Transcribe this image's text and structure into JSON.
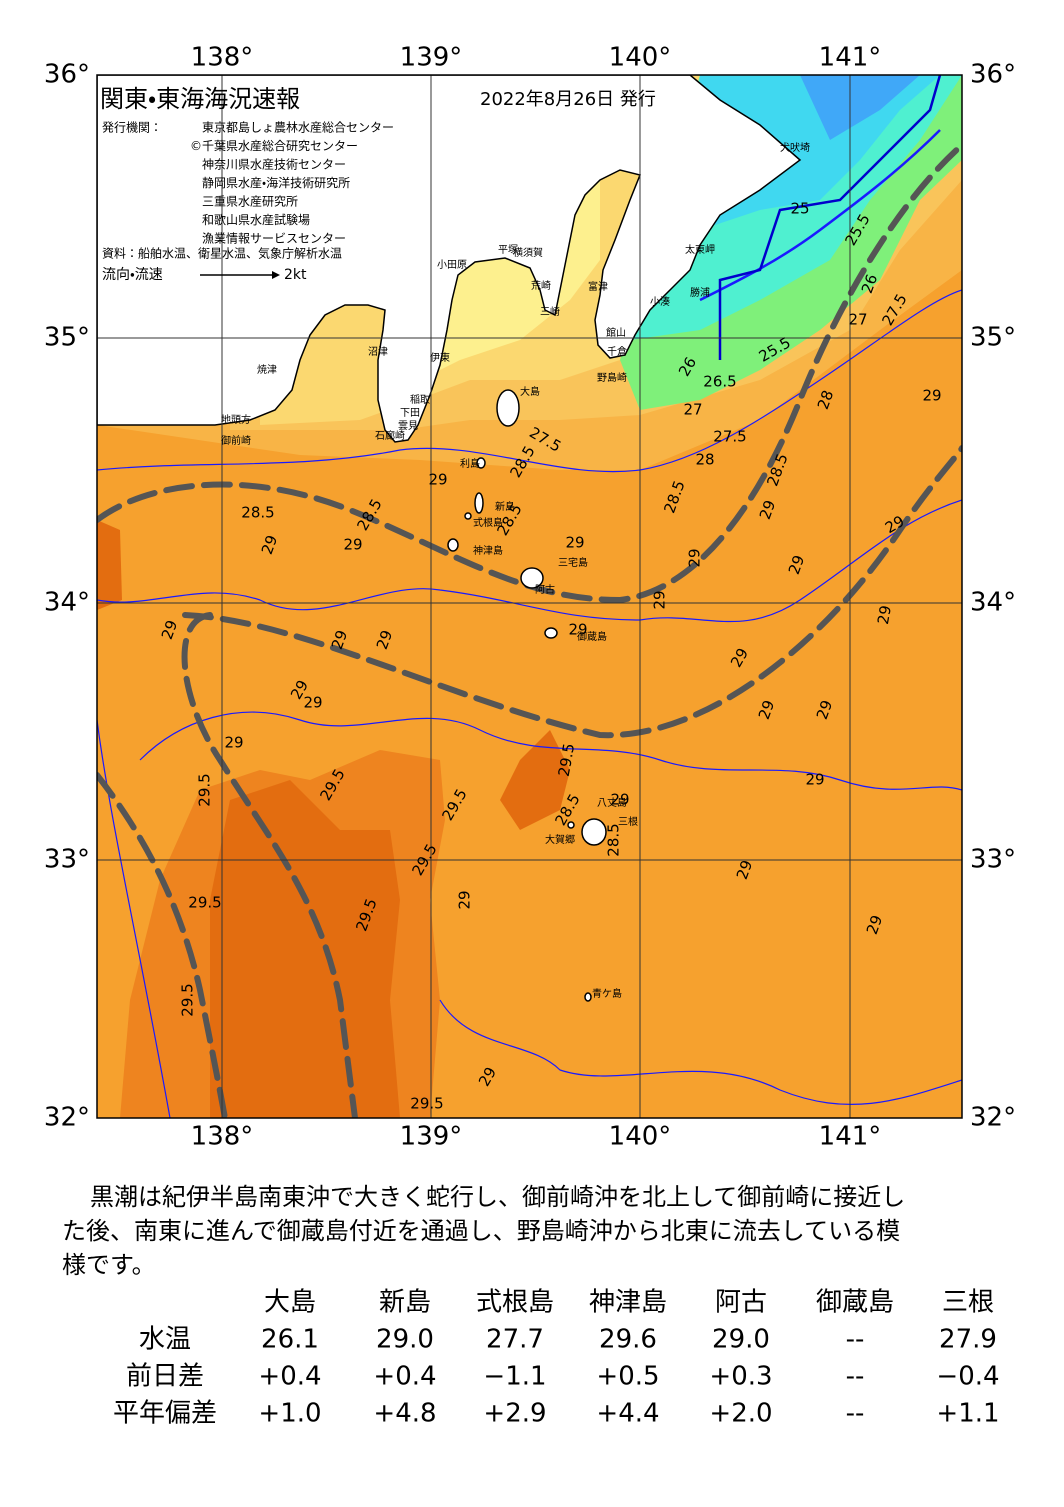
{
  "header": {
    "title": "関東・東海海況速報",
    "date": "2022年8月26日 発行"
  },
  "agencies": {
    "label": "発行機関：",
    "list": [
      "東京都島しょ農林水産総合センター",
      "©千葉県水産総合研究センター",
      "神奈川県水産技術センター",
      "静岡県水産・海洋技術研究所",
      "三重県水産研究所",
      "和歌山県水産試験場",
      "漁業情報サービスセンター"
    ]
  },
  "source": "資料：船舶水温、衛星水温、気象庁解析水温",
  "legend": {
    "label": "流向・流速",
    "scale": "2kt"
  },
  "map": {
    "lon_ticks": [
      "138°",
      "139°",
      "140°",
      "141°"
    ],
    "lat_ticks": [
      "36°",
      "35°",
      "34°",
      "33°",
      "32°"
    ],
    "place_names": [
      "犬吠埼",
      "太東岬",
      "勝浦",
      "小湊",
      "館山",
      "千倉",
      "野島崎",
      "富津",
      "横須賀",
      "平塚",
      "小田原",
      "荒崎",
      "三崎",
      "沼津",
      "伊東",
      "焼津",
      "地頭方",
      "御前崎",
      "稲取",
      "下田",
      "雲見",
      "石廊崎",
      "大島",
      "利島",
      "新島",
      "式根島",
      "神津島",
      "三宅島",
      "阿古",
      "御蔵島",
      "八丈島",
      "三根",
      "大賀郷",
      "青ケ島"
    ],
    "contour_labels": [
      "28.5",
      "29",
      "28.5",
      "29",
      "29",
      "28.5",
      "27.5",
      "28.5",
      "29",
      "29",
      "29",
      "29",
      "29",
      "29",
      "29",
      "29.5",
      "29.5",
      "29.5",
      "29.5",
      "29.5",
      "29.5",
      "29.5",
      "29.5",
      "29.5",
      "28.5",
      "28.5",
      "29",
      "29",
      "29",
      "29",
      "29",
      "29",
      "28.5",
      "28",
      "27.5",
      "27",
      "26.5",
      "26",
      "25.5",
      "25",
      "25.5",
      "26",
      "27",
      "27.5",
      "28",
      "29",
      "28.5",
      "29",
      "29",
      "29",
      "29",
      "29",
      "29",
      "29",
      "29",
      "29",
      "29"
    ]
  },
  "note": {
    "lines": [
      "黒潮は紀伊半島南東沖で大きく蛇行し、御前崎沖を北上して御前崎に接近し",
      "た後、南東に進んで御蔵島付近を通過し、野島崎沖から北東に流去している模",
      "様です。"
    ]
  },
  "table": {
    "columns": [
      "大島",
      "新島",
      "式根島",
      "神津島",
      "阿古",
      "御蔵島",
      "三根"
    ],
    "rows": [
      [
        "水温",
        "26.1",
        "29.0",
        "27.7",
        "29.6",
        "29.0",
        "--",
        "27.9"
      ],
      [
        "前日差",
        "+0.4",
        "+0.4",
        "−1.1",
        "+0.5",
        "+0.3",
        "--",
        "−0.4"
      ],
      [
        "平年偏差",
        "+1.0",
        "+4.8",
        "+2.9",
        "+4.4",
        "+2.0",
        "--",
        "+1.1"
      ]
    ]
  }
}
